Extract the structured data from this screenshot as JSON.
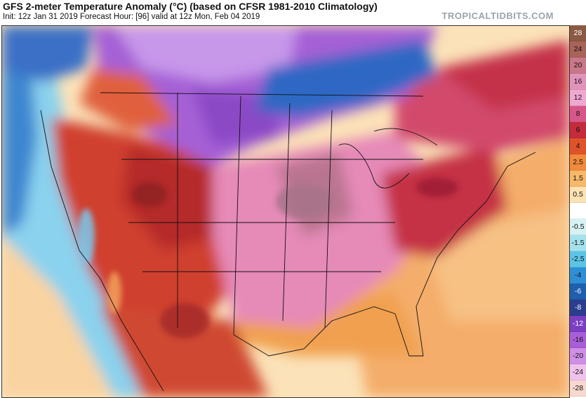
{
  "header": {
    "title": "GFS 2-meter Temperature Anomaly (°C) (based on CFSR 1981-2010 Climatology)",
    "subtitle": "Init: 12z Jan 31 2019   Forecast Hour: [96]   valid at 12z Mon, Feb 04 2019",
    "brand": "TROPICALTIDBITS.COM"
  },
  "colorbar": {
    "levels": [
      {
        "label": "28",
        "color": "#8a5a44"
      },
      {
        "label": "24",
        "color": "#a8645a"
      },
      {
        "label": "20",
        "color": "#c9788a"
      },
      {
        "label": "16",
        "color": "#e194bb"
      },
      {
        "label": "12",
        "color": "#f0a8d2"
      },
      {
        "label": "8",
        "color": "#d8578a"
      },
      {
        "label": "6",
        "color": "#c22c3c"
      },
      {
        "label": "4",
        "color": "#e0532a"
      },
      {
        "label": "2.5",
        "color": "#f08a3c"
      },
      {
        "label": "1.5",
        "color": "#f7b86a"
      },
      {
        "label": "0.5",
        "color": "#fde3b3"
      },
      {
        "label": "",
        "color": "#ffffff"
      },
      {
        "label": "-0.5",
        "color": "#d6f2f2"
      },
      {
        "label": "-1.5",
        "color": "#a4e2ee"
      },
      {
        "label": "-2.5",
        "color": "#5cc4e6"
      },
      {
        "label": "-4",
        "color": "#2f8fd6"
      },
      {
        "label": "-6",
        "color": "#1f5fae"
      },
      {
        "label": "-8",
        "color": "#2a3d8e"
      },
      {
        "label": "-12",
        "color": "#7b3fc2"
      },
      {
        "label": "-16",
        "color": "#a85ed8"
      },
      {
        "label": "-20",
        "color": "#cf8fe6"
      },
      {
        "label": "-24",
        "color": "#efc2ee"
      },
      {
        "label": "-28",
        "color": "#f7d9cf"
      }
    ]
  },
  "colors": {
    "ocean_neutral": "#fbe2b8",
    "warm_orange": "#f3a45a",
    "hot_red": "#cc3a2c",
    "deep_red": "#a22a2e",
    "pink": "#e88cbc",
    "mauve": "#b97a95",
    "purple": "#a35fd4",
    "violet": "#c493ea",
    "blue": "#2f6fc8",
    "cyan": "#86d3ec"
  }
}
